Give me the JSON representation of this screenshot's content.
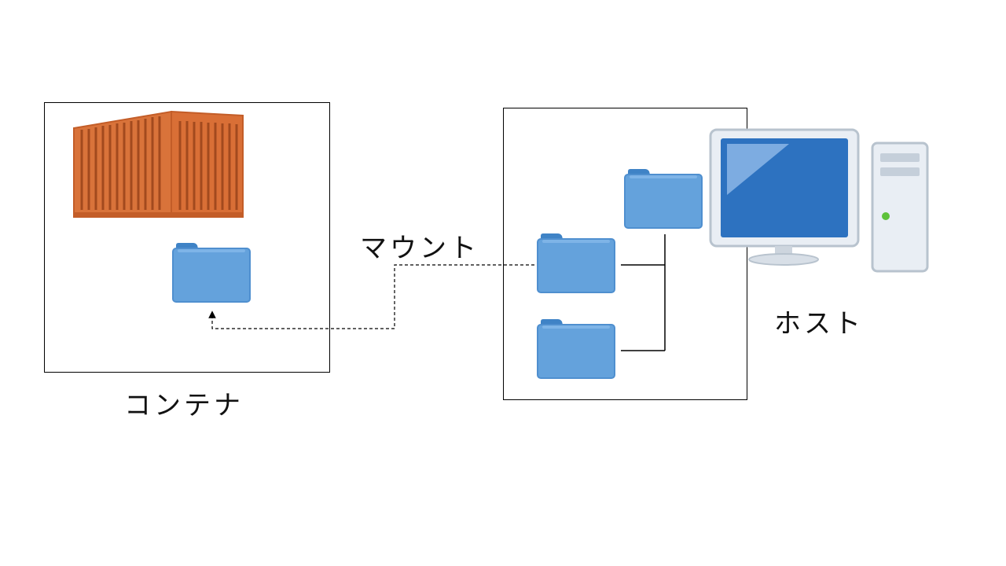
{
  "labels": {
    "container": "コンテナ",
    "mount": "マウント",
    "host": "ホスト"
  },
  "icons": {
    "container": "shipping-container-icon",
    "folder": "folder-icon",
    "computer": "desktop-computer-icon"
  },
  "colors": {
    "container_body": "#d9733a",
    "folder_blue": "#64a2dc",
    "monitor_screen": "#2d72c0"
  }
}
